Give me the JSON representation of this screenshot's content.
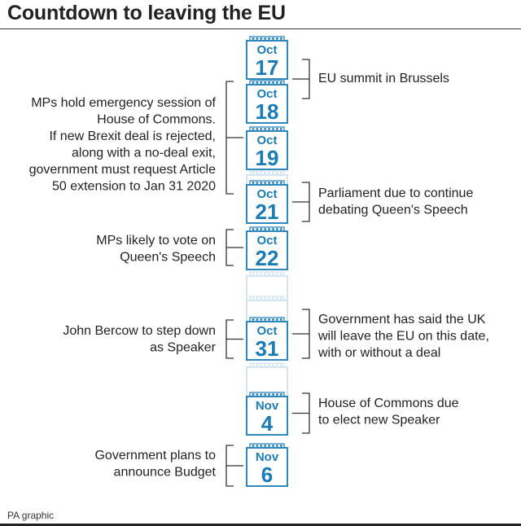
{
  "title": "Countdown to leaving the EU",
  "credit": "PA graphic",
  "colors": {
    "accent": "#1a7cb6",
    "faded": "#cfe3f0",
    "text": "#222222",
    "line": "#333333"
  },
  "dates": [
    {
      "month": "Oct",
      "day": "17"
    },
    {
      "month": "Oct",
      "day": "18"
    },
    {
      "month": "Oct",
      "day": "19"
    },
    {
      "month": "Oct",
      "day": "21"
    },
    {
      "month": "Oct",
      "day": "22"
    },
    {
      "month": "Oct",
      "day": "31"
    },
    {
      "month": "Nov",
      "day": "4"
    },
    {
      "month": "Nov",
      "day": "6"
    }
  ],
  "events": [
    {
      "side": "right",
      "lines": [
        "EU summit in Brussels"
      ]
    },
    {
      "side": "left",
      "lines": [
        "MPs hold emergency session of",
        "House of Commons.",
        "If new Brexit deal is rejected,",
        "along with a no-deal exit,",
        "government must request Article",
        "50 extension to Jan 31 2020"
      ]
    },
    {
      "side": "right",
      "lines": [
        "Parliament due to continue",
        "debating Queen's Speech"
      ]
    },
    {
      "side": "left",
      "lines": [
        "MPs likely to vote on",
        "Queen's Speech"
      ]
    },
    {
      "side": "left",
      "lines": [
        "John Bercow to step down",
        "as Speaker"
      ]
    },
    {
      "side": "right",
      "lines": [
        "Government has said the UK",
        "will leave the EU on this date,",
        "with or without a deal"
      ]
    },
    {
      "side": "right",
      "lines": [
        "House of Commons due",
        "to elect new Speaker"
      ]
    },
    {
      "side": "left",
      "lines": [
        "Government plans to",
        "announce Budget"
      ]
    }
  ]
}
